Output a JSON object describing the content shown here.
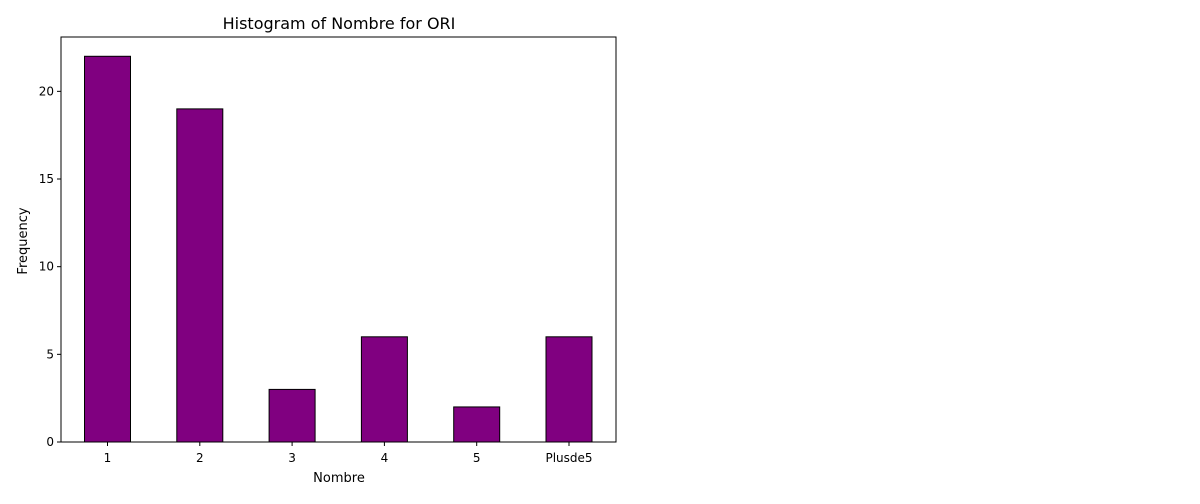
{
  "chart_data": {
    "type": "bar",
    "title": "Histogram of Nombre for ORI",
    "xlabel": "Nombre",
    "ylabel": "Frequency",
    "categories": [
      "1",
      "2",
      "3",
      "4",
      "5",
      "Plusde5"
    ],
    "values": [
      22,
      19,
      3,
      6,
      2,
      6
    ],
    "ylim": [
      0,
      23.1
    ],
    "yticks": [
      0,
      5,
      10,
      15,
      20
    ],
    "grid": false,
    "bar_color": "#800080",
    "edge_color": "#000000"
  }
}
